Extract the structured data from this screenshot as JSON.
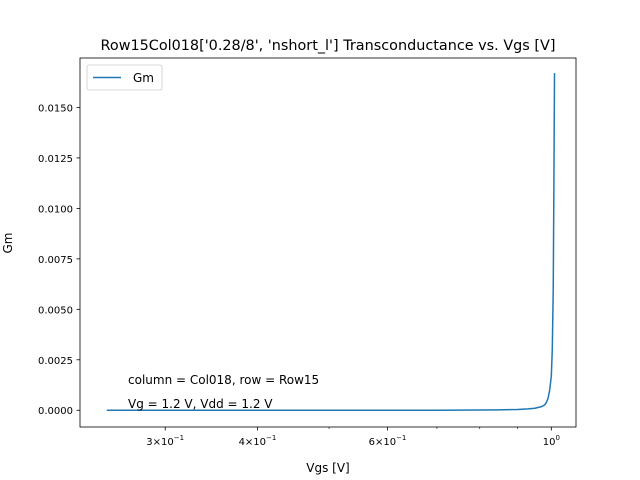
{
  "chart_data": {
    "type": "line",
    "title": "Row15Col018['0.28/8', 'nshort_l'] Transconductance vs. Vgs [V]",
    "xlabel": "Vgs [V]",
    "ylabel": "Gm",
    "xscale": "log",
    "xlim": [
      0.23,
      1.08
    ],
    "ylim": [
      -0.00083,
      0.01745
    ],
    "grid": false,
    "legend_position": "top-left",
    "x_ticks": [
      {
        "value": 0.3,
        "base": "3",
        "exp": "−1"
      },
      {
        "value": 0.4,
        "base": "4",
        "exp": "−1"
      },
      {
        "value": 0.6,
        "base": "6",
        "exp": "−1"
      },
      {
        "value": 1.0,
        "base": "10",
        "exp": "0"
      }
    ],
    "x_minor_ticks": [
      0.5,
      0.7,
      0.8,
      0.9
    ],
    "y_ticks": [
      "0.0000",
      "0.0025",
      "0.0050",
      "0.0075",
      "0.0100",
      "0.0125",
      "0.0150"
    ],
    "y_tick_values": [
      0,
      0.0025,
      0.005,
      0.0075,
      0.01,
      0.0125,
      0.015
    ],
    "series": [
      {
        "name": "Gm",
        "color": "#1f77b4",
        "x": [
          0.25,
          0.3,
          0.4,
          0.5,
          0.6,
          0.7,
          0.8,
          0.85,
          0.9,
          0.93,
          0.95,
          0.97,
          0.98,
          0.985,
          0.99,
          0.995,
          1.0,
          1.003,
          1.006,
          1.008,
          1.01
        ],
        "y": [
          0,
          0,
          0,
          0,
          0,
          0,
          1e-05,
          2e-05,
          4e-05,
          7e-05,
          0.0001,
          0.00018,
          0.00027,
          0.0004,
          0.0006,
          0.001,
          0.0017,
          0.003,
          0.006,
          0.011,
          0.0167
        ]
      }
    ],
    "annotations": [
      "column = Col018, row = Row15",
      "Vg = 1.2 V, Vdd = 1.2 V"
    ]
  }
}
